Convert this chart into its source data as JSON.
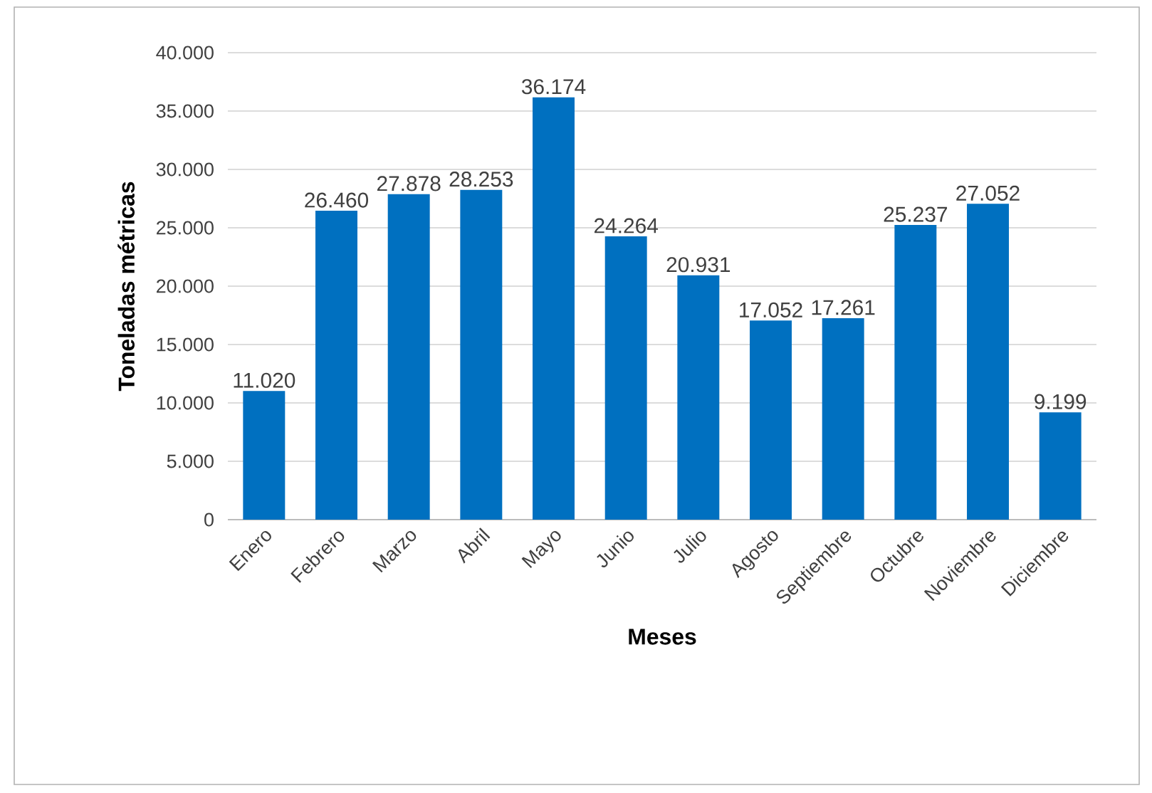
{
  "chart_data": {
    "type": "bar",
    "xlabel": "Meses",
    "ylabel": "Toneladas métricas",
    "categories": [
      "Enero",
      "Febrero",
      "Marzo",
      "Abril",
      "Mayo",
      "Junio",
      "Julio",
      "Agosto",
      "Septiembre",
      "Octubre",
      "Noviembre",
      "Diciembre"
    ],
    "values": [
      11020,
      26460,
      27878,
      28253,
      36174,
      24264,
      20931,
      17052,
      17261,
      25237,
      27052,
      9199
    ],
    "value_labels": [
      "11.020",
      "26.460",
      "27.878",
      "28.253",
      "36.174",
      "24.264",
      "20.931",
      "17.052",
      "17.261",
      "25.237",
      "27.052",
      "9.199"
    ],
    "color": "#0070c0",
    "ylim": [
      0,
      40000
    ],
    "yticks": [
      0,
      {
        "value": 5000,
        "label": "5.000"
      },
      {
        "value": 10000,
        "label": "10.000"
      },
      {
        "value": 15000,
        "label": "15.000"
      },
      {
        "value": 20000,
        "label": "20.000"
      },
      {
        "value": 25000,
        "label": "25.000"
      },
      {
        "value": 30000,
        "label": "30.000"
      },
      {
        "value": 35000,
        "label": "35.000"
      },
      {
        "value": 40000,
        "label": "40.000"
      }
    ],
    "grid": "y"
  }
}
